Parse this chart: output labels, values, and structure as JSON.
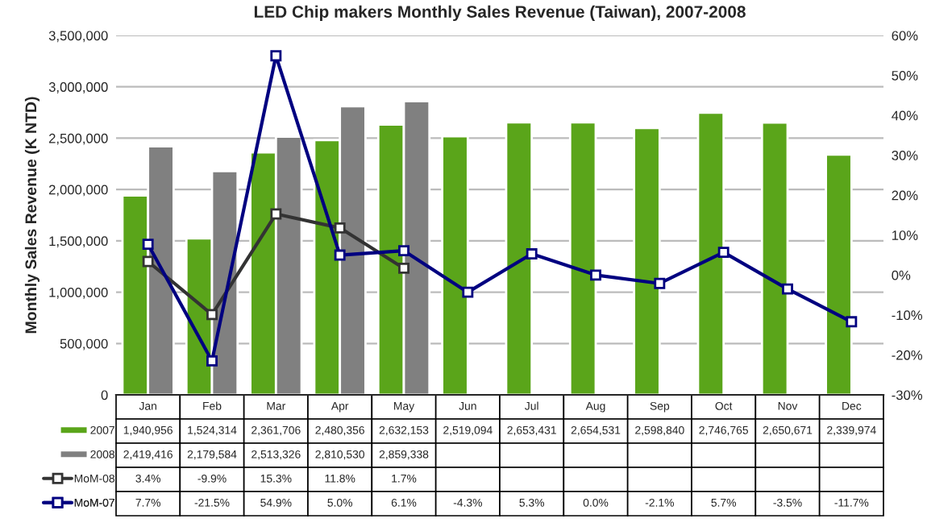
{
  "chart_data": {
    "type": "bar",
    "title": "LED Chip makers Monthly Sales Revenue (Taiwan), 2007-2008",
    "ylabel": "Monthly Sales Revenue (K NTD)",
    "categories": [
      "Jan",
      "Feb",
      "Mar",
      "Apr",
      "May",
      "Jun",
      "Jul",
      "Aug",
      "Sep",
      "Oct",
      "Nov",
      "Dec"
    ],
    "series": [
      {
        "name": "2007",
        "color": "#5aa51a",
        "values": [
          1940956,
          1524314,
          2361706,
          2480356,
          2632153,
          2519094,
          2653431,
          2654531,
          2598840,
          2746765,
          2650671,
          2339974
        ],
        "value_labels": [
          "1,940,956",
          "1,524,314",
          "2,361,706",
          "2,480,356",
          "2,632,153",
          "2,519,094",
          "2,653,431",
          "2,654,531",
          "2,598,840",
          "2,746,765",
          "2,650,671",
          "2,339,974"
        ]
      },
      {
        "name": "2008",
        "color": "#808080",
        "values": [
          2419416,
          2179584,
          2513326,
          2810530,
          2859338,
          null,
          null,
          null,
          null,
          null,
          null,
          null
        ],
        "value_labels": [
          "2,419,416",
          "2,179,584",
          "2,513,326",
          "2,810,530",
          "2,859,338",
          null,
          null,
          null,
          null,
          null,
          null,
          null
        ]
      },
      {
        "name": "MoM-08",
        "type": "line",
        "axis": "y2",
        "color": "#333333",
        "values": [
          3.4,
          -9.9,
          15.3,
          11.8,
          1.7,
          null,
          null,
          null,
          null,
          null,
          null,
          null
        ],
        "value_labels": [
          "3.4%",
          "-9.9%",
          "15.3%",
          "11.8%",
          "1.7%",
          null,
          null,
          null,
          null,
          null,
          null,
          null
        ]
      },
      {
        "name": "MoM-07",
        "type": "line",
        "axis": "y2",
        "color": "#000080",
        "values": [
          7.7,
          -21.5,
          54.9,
          5.0,
          6.1,
          -4.3,
          5.3,
          0.0,
          -2.1,
          5.7,
          -3.5,
          -11.7
        ],
        "value_labels": [
          "7.7%",
          "-21.5%",
          "54.9%",
          "5.0%",
          "6.1%",
          "-4.3%",
          "5.3%",
          "0.0%",
          "-2.1%",
          "5.7%",
          "-3.5%",
          "-11.7%"
        ]
      }
    ],
    "ylim": [
      0,
      3500000
    ],
    "yticks": [
      0,
      {
        "value": 500000,
        "label": "500,000"
      },
      {
        "value": 1000000,
        "label": "1,000,000"
      },
      {
        "value": 1500000,
        "label": "1,500,000"
      },
      {
        "value": 2000000,
        "label": "2,000,000"
      },
      {
        "value": 2500000,
        "label": "2,500,000"
      },
      {
        "value": 3000000,
        "label": "3,000,000"
      },
      {
        "value": 3500000,
        "label": "3,500,000"
      }
    ],
    "y2lim": [
      -30,
      60
    ],
    "y2ticks": [
      {
        "value": -30,
        "label": "-30%"
      },
      {
        "value": -20,
        "label": "-20%"
      },
      {
        "value": -10,
        "label": "-10%"
      },
      {
        "value": 0,
        "label": "0%"
      },
      {
        "value": 10,
        "label": "10%"
      },
      {
        "value": 20,
        "label": "20%"
      },
      {
        "value": 30,
        "label": "30%"
      },
      {
        "value": 40,
        "label": "40%"
      },
      {
        "value": 50,
        "label": "50%"
      },
      {
        "value": 60,
        "label": "60%"
      }
    ],
    "grid": "y",
    "marker": "square",
    "line_style": "solid",
    "legend": "bottom left"
  }
}
